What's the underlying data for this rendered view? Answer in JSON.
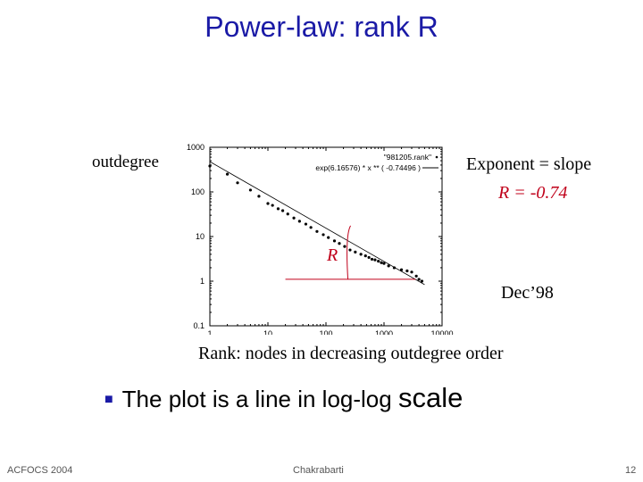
{
  "slide": {
    "title": "Power-law: rank R",
    "ylabel_outside": "outdegree",
    "exponent_text": "Exponent = slope",
    "r_value_text": "R = -0.74",
    "date_text": "Dec’98",
    "xlabel": "Rank: nodes  in decreasing outdegree order",
    "r_marker": "R",
    "bullet_text": "The plot is a line in log-log ",
    "bullet_scale": "scale",
    "footer_left": "ACFOCS 2004",
    "footer_center": "Chakrabarti",
    "footer_right": "12"
  },
  "chart_data": {
    "type": "scatter",
    "x_scale": "log",
    "y_scale": "log",
    "xlim": [
      1,
      10000
    ],
    "ylim": [
      0.1,
      1000
    ],
    "x_ticks": [
      "1",
      "10",
      "100",
      "1000",
      "10000"
    ],
    "y_ticks": [
      "1000",
      "100",
      "10",
      "1",
      "0.1"
    ],
    "legend": [
      "\"981205.rank\"",
      "exp(6.16576) * x ** ( -0.74496 )"
    ],
    "legend_position": "top-right",
    "grid": false,
    "series": [
      {
        "name": "\"981205.rank\"",
        "x": [
          1,
          2,
          3,
          5,
          7,
          10,
          12,
          15,
          18,
          22,
          28,
          35,
          45,
          55,
          70,
          90,
          110,
          140,
          170,
          210,
          260,
          320,
          400,
          480,
          550,
          620,
          700,
          800,
          900,
          1000,
          1200,
          1500,
          2000,
          2500,
          3000,
          3600,
          4000,
          4500
        ],
        "y": [
          380,
          250,
          160,
          110,
          80,
          55,
          50,
          42,
          38,
          32,
          26,
          22,
          19,
          16,
          13,
          11,
          9.5,
          8,
          7,
          6,
          5,
          4.5,
          4,
          3.7,
          3.4,
          3.1,
          3,
          2.8,
          2.6,
          2.5,
          2.2,
          2,
          1.8,
          1.7,
          1.6,
          1.3,
          1.1,
          1
        ]
      },
      {
        "name": "exp(6.16576) * x ** ( -0.74496 )",
        "line": {
          "coef": 476.0,
          "exponent": -0.74496
        }
      }
    ],
    "annotation": {
      "label": "R",
      "exponent": -0.74
    }
  }
}
